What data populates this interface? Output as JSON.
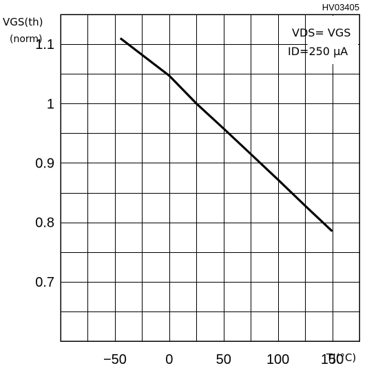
{
  "figure_code": "HV03405",
  "conditions": {
    "line1": "VDS= VGS",
    "line2": "ID=250 μA"
  },
  "chart_data": {
    "type": "line",
    "ylabel_line1": "VGS(th)",
    "ylabel_line2": "(norm)",
    "xlabel": "TJ(°C)",
    "xlim": [
      -100,
      175
    ],
    "ylim": [
      0.6,
      1.15
    ],
    "x_ticks": [
      -50,
      0,
      50,
      100,
      150
    ],
    "x_tick_labels": [
      "−50",
      "0",
      "50",
      "100",
      "150"
    ],
    "y_ticks": [
      0.7,
      0.8,
      0.9,
      1.0,
      1.1
    ],
    "y_tick_labels": [
      "0.7",
      "0.8",
      "0.9",
      "1",
      "1.1"
    ],
    "x_grid_step": 25,
    "y_grid_step": 0.05,
    "grid": true,
    "series": [
      {
        "x": [
          -45,
          0,
          25,
          50,
          75,
          100,
          125,
          150
        ],
        "y": [
          1.11,
          1.047,
          1.0,
          0.958,
          0.915,
          0.872,
          0.828,
          0.785
        ]
      }
    ]
  }
}
